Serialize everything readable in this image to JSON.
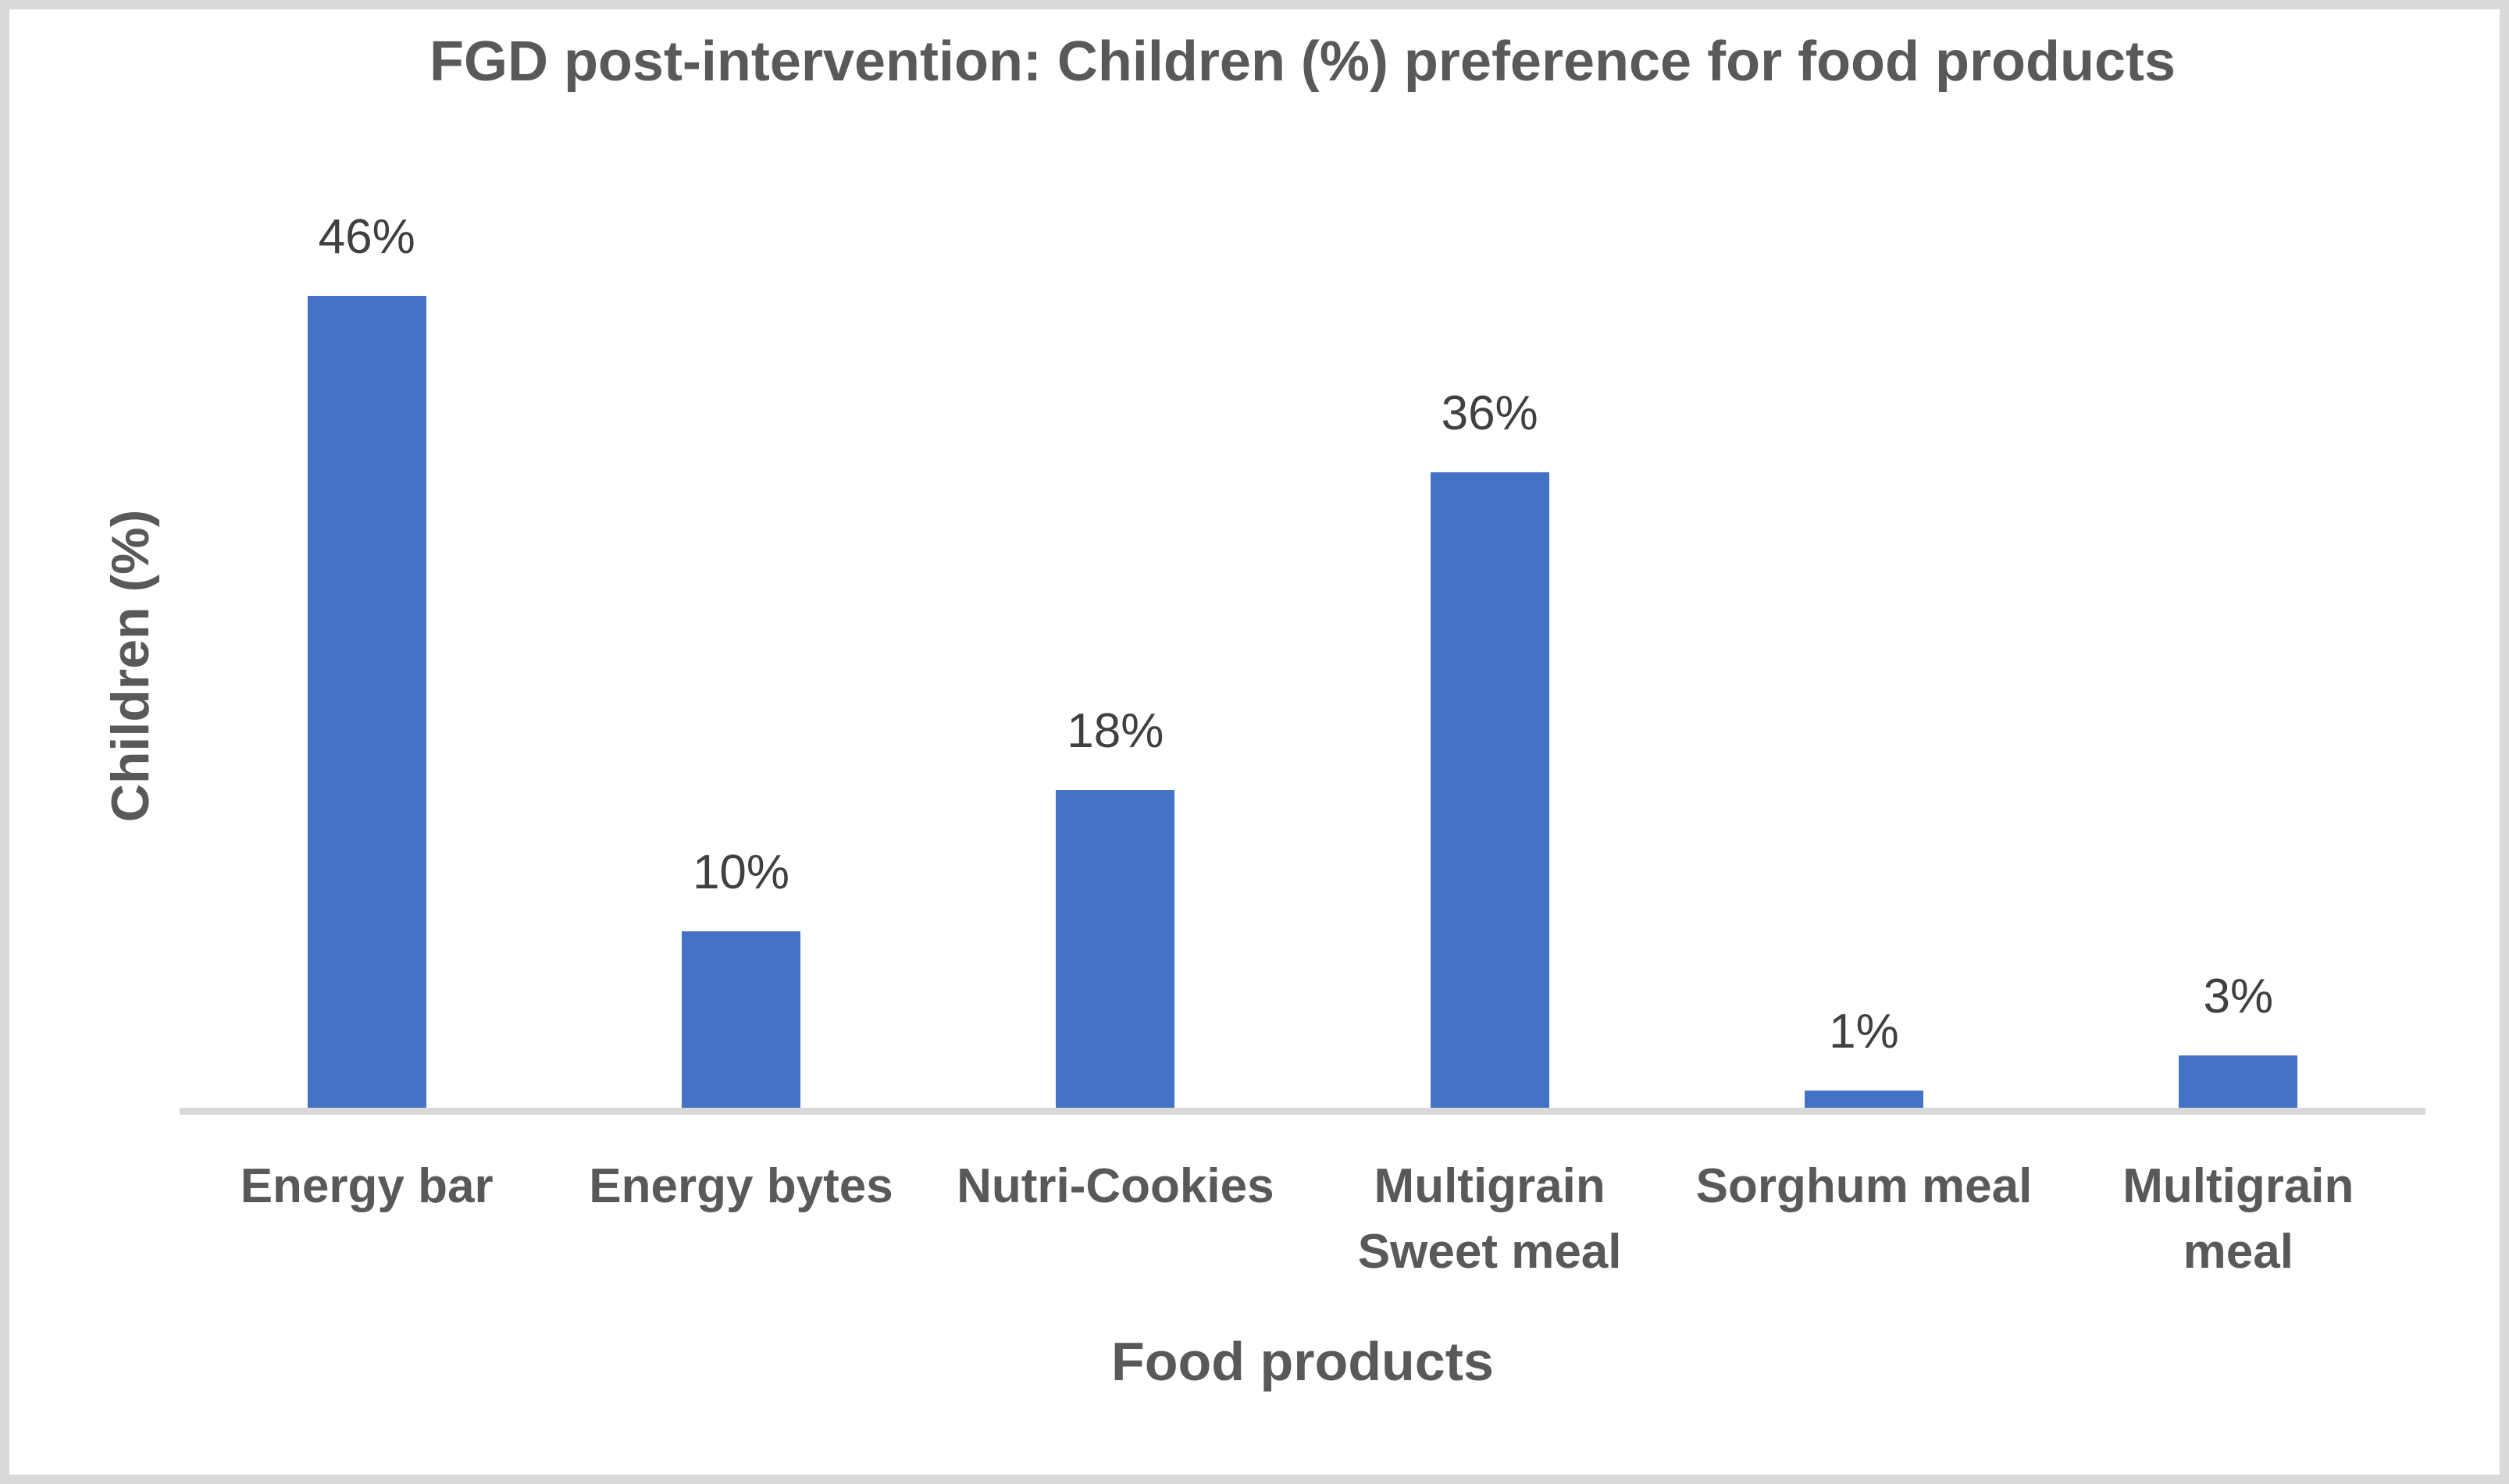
{
  "chart_data": {
    "type": "bar",
    "title": "FGD post-intervention: Children (%) preference for food products",
    "xlabel": "Food products",
    "ylabel": "Children (%)",
    "categories": [
      "Energy bar",
      "Energy bytes",
      "Nutri-Cookies",
      "Multigrain Sweet meal",
      "Sorghum meal",
      "Multigrain meal"
    ],
    "values": [
      46,
      10,
      18,
      36,
      1,
      3
    ],
    "data_labels": [
      "46%",
      "10%",
      "18%",
      "36%",
      "1%",
      "3%"
    ],
    "ylim": [
      0,
      50
    ],
    "grid": false,
    "legend": false,
    "layout": "vertical bars, data labels above bars, no y-axis tick labels, single gray baseline",
    "bar_color": "#4472C4",
    "axis_line_color": "#D9D9D9",
    "title_color": "#595959",
    "data_label_color": "#404040",
    "border_color": "#D9D9D9",
    "background": "#FFFFFF"
  }
}
